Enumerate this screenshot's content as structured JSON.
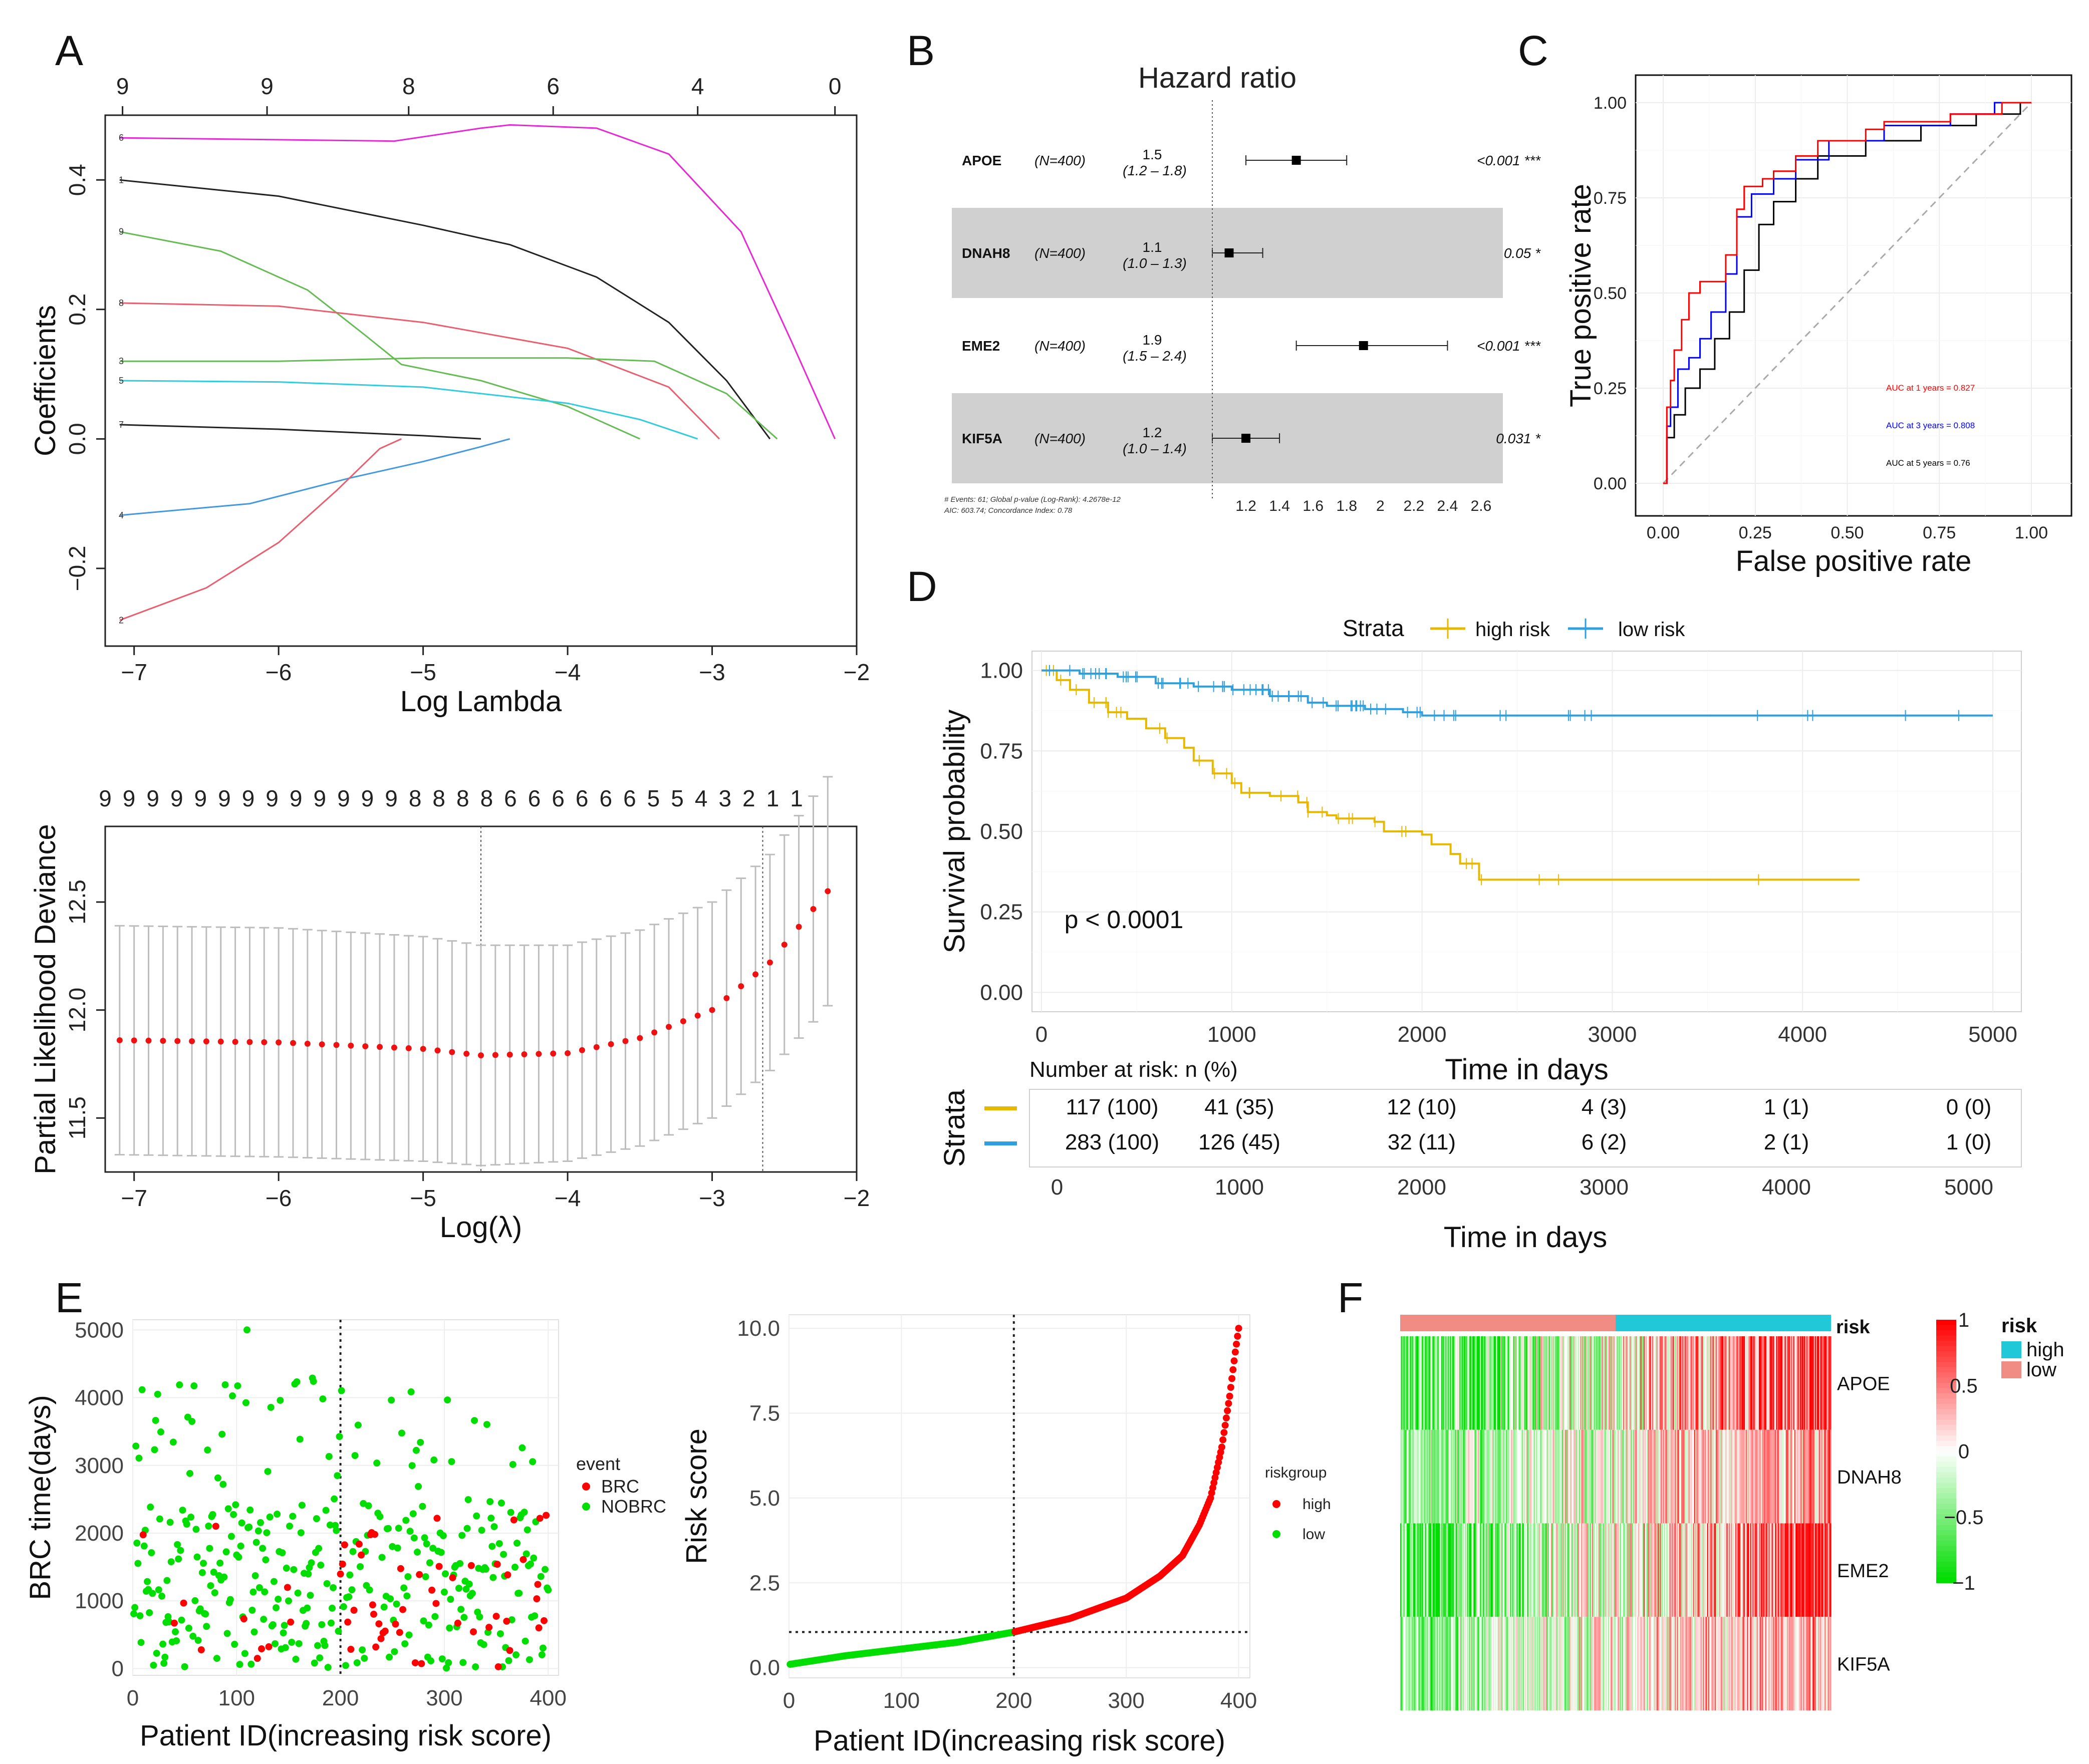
{
  "colors": {
    "high_risk": "#E7B800",
    "low_risk": "#2E9FDF",
    "roc1": "#FF0000",
    "roc3": "#0000FF",
    "roc5": "#000000",
    "brc": "#FF0000",
    "nobrc": "#00DD00",
    "heat_high": "#FF0000",
    "heat_low": "#00DD00",
    "risk_high_bar": "#20C8D8",
    "risk_low_bar": "#F08C84"
  },
  "panels": {
    "A": "A",
    "B": "B",
    "C": "C",
    "D": "D",
    "E": "E",
    "F": "F"
  },
  "chart_data": [
    {
      "id": "A_top",
      "type": "line",
      "title": "",
      "xlabel": "Log Lambda",
      "ylabel": "Coefficients",
      "xlim": [
        -7.2,
        -2.0
      ],
      "ylim": [
        -0.32,
        0.5
      ],
      "xticks": [
        -7,
        -6,
        -5,
        -4,
        -3,
        -2
      ],
      "yticks": [
        -0.2,
        0.0,
        0.2,
        0.4
      ],
      "top_ticks": {
        "positions": [
          -7.08,
          -6.08,
          -5.1,
          -4.1,
          -3.1,
          -2.15
        ],
        "labels": [
          "9",
          "9",
          "8",
          "6",
          "4",
          "0"
        ]
      },
      "series": [
        {
          "name": "6",
          "color": "#E52BD4",
          "x": [
            -7.1,
            -5.2,
            -4.6,
            -4.4,
            -3.8,
            -3.3,
            -2.8,
            -2.45,
            -2.15
          ],
          "y": [
            0.465,
            0.46,
            0.48,
            0.485,
            0.48,
            0.44,
            0.32,
            0.15,
            0.0
          ]
        },
        {
          "name": "1",
          "color": "#222222",
          "x": [
            -7.1,
            -6.0,
            -5.0,
            -4.4,
            -3.8,
            -3.3,
            -2.9,
            -2.6
          ],
          "y": [
            0.4,
            0.375,
            0.33,
            0.3,
            0.25,
            0.18,
            0.09,
            0.0
          ]
        },
        {
          "name": "9",
          "color": "#66BB55",
          "x": [
            -7.1,
            -6.4,
            -5.8,
            -5.4,
            -5.15,
            -4.6,
            -4.0,
            -3.5
          ],
          "y": [
            0.32,
            0.29,
            0.23,
            0.16,
            0.115,
            0.09,
            0.05,
            0.0
          ]
        },
        {
          "name": "8",
          "color": "#E86070",
          "x": [
            -7.1,
            -6.0,
            -5.0,
            -4.0,
            -3.3,
            -2.95
          ],
          "y": [
            0.21,
            0.205,
            0.18,
            0.14,
            0.08,
            0.0
          ]
        },
        {
          "name": "3",
          "color": "#66BB55",
          "x": [
            -7.1,
            -6.0,
            -5.0,
            -4.0,
            -3.4,
            -2.9,
            -2.55
          ],
          "y": [
            0.12,
            0.12,
            0.125,
            0.125,
            0.12,
            0.07,
            0.0
          ]
        },
        {
          "name": "5",
          "color": "#33CCDD",
          "x": [
            -7.1,
            -6.0,
            -5.0,
            -4.0,
            -3.5,
            -3.1
          ],
          "y": [
            0.09,
            0.088,
            0.08,
            0.055,
            0.03,
            0.0
          ]
        },
        {
          "name": "7",
          "color": "#222222",
          "x": [
            -7.1,
            -6.0,
            -5.0,
            -4.6
          ],
          "y": [
            0.022,
            0.015,
            0.005,
            0.0
          ]
        },
        {
          "name": "4",
          "color": "#4499DD",
          "x": [
            -7.1,
            -6.2,
            -5.5,
            -5.0,
            -4.6,
            -4.4
          ],
          "y": [
            -0.118,
            -0.1,
            -0.06,
            -0.035,
            -0.012,
            0.0
          ]
        },
        {
          "name": "2",
          "color": "#E86070",
          "x": [
            -7.1,
            -6.5,
            -6.0,
            -5.6,
            -5.3,
            -5.15
          ],
          "y": [
            -0.28,
            -0.23,
            -0.16,
            -0.08,
            -0.015,
            0.0
          ]
        }
      ]
    },
    {
      "id": "A_bottom",
      "type": "scatter",
      "xlabel": "Log(λ)",
      "ylabel": "Partial Likelihood Deviance",
      "xlim": [
        -7.2,
        -2.0
      ],
      "ylim": [
        11.25,
        12.85
      ],
      "xticks": [
        -7,
        -6,
        -5,
        -4,
        -3,
        -2
      ],
      "yticks": [
        11.5,
        12.0,
        12.5
      ],
      "top_labels": [
        "9",
        "9",
        "9",
        "9",
        "9",
        "9",
        "9",
        "9",
        "9",
        "9",
        "9",
        "9",
        "9",
        "8",
        "8",
        "8",
        "8",
        "6",
        "6",
        "6",
        "6",
        "6",
        "6",
        "5",
        "5",
        "4",
        "3",
        "2",
        "1",
        "1"
      ],
      "vlines": [
        -4.6,
        -2.65
      ],
      "lambda_start": -7.1,
      "lambda_end": -2.2,
      "n_points": 50,
      "curve": {
        "x": [
          -7.1,
          -6.0,
          -5.0,
          -4.6,
          -4.0,
          -3.5,
          -3.0,
          -2.6,
          -2.2
        ],
        "y": [
          11.86,
          11.85,
          11.82,
          11.79,
          11.8,
          11.87,
          12.0,
          12.22,
          12.55
        ]
      },
      "band": {
        "x": [
          -7.1,
          -6.0,
          -5.0,
          -4.6,
          -4.0,
          -3.5,
          -3.0,
          -2.6,
          -2.2
        ],
        "half": [
          0.53,
          0.53,
          0.52,
          0.51,
          0.5,
          0.5,
          0.5,
          0.5,
          0.53
        ]
      }
    },
    {
      "id": "B",
      "type": "forest",
      "title": "Hazard ratio",
      "rows": [
        {
          "gene": "APOE",
          "n": "(N=400)",
          "hr": "1.5",
          "ci": "(1.2 – 1.8)",
          "p": "<0.001 ***",
          "est": 1.5,
          "lo": 1.2,
          "hi": 1.8,
          "shade": false
        },
        {
          "gene": "DNAH8",
          "n": "(N=400)",
          "hr": "1.1",
          "ci": "(1.0 – 1.3)",
          "p": "0.05 *",
          "est": 1.1,
          "lo": 1.0,
          "hi": 1.3,
          "shade": true
        },
        {
          "gene": "EME2",
          "n": "(N=400)",
          "hr": "1.9",
          "ci": "(1.5 – 2.4)",
          "p": "<0.001 ***",
          "est": 1.9,
          "lo": 1.5,
          "hi": 2.4,
          "shade": false
        },
        {
          "gene": "KIF5A",
          "n": "(N=400)",
          "hr": "1.2",
          "ci": "(1.0 – 1.4)",
          "p": "0.031 *",
          "est": 1.2,
          "lo": 1.0,
          "hi": 1.4,
          "shade": true
        }
      ],
      "x_tick_labels": [
        "1.2",
        "1.4",
        "1.6",
        "1.8",
        "2",
        "2.2",
        "2.4",
        "2.6"
      ],
      "x_tick_values": [
        1.2,
        1.4,
        1.6,
        1.8,
        2.0,
        2.2,
        2.4,
        2.6
      ],
      "footnote_1": "# Events: 61; Global p-value (Log-Rank): 4.2678e-12",
      "footnote_2": "AIC: 603.74; Concordance Index: 0.78"
    },
    {
      "id": "C",
      "type": "line",
      "xlabel": "False positive rate",
      "ylabel": "True positive rate",
      "xlim": [
        0,
        1
      ],
      "ylim": [
        0,
        1
      ],
      "xticks": [
        "0.00",
        "0.25",
        "0.50",
        "0.75",
        "1.00"
      ],
      "yticks": [
        "0.00",
        "0.25",
        "0.50",
        "0.75",
        "1.00"
      ],
      "legend": [
        "AUC at 1 years = 0.827",
        "AUC at 3 years = 0.808",
        "AUC at 5 years = 0.76"
      ],
      "series": [
        {
          "name": "1 years",
          "color": "#FF0000",
          "x": [
            0,
            0.01,
            0.01,
            0.02,
            0.02,
            0.03,
            0.03,
            0.05,
            0.05,
            0.07,
            0.07,
            0.1,
            0.1,
            0.17,
            0.17,
            0.2,
            0.2,
            0.22,
            0.22,
            0.27,
            0.27,
            0.3,
            0.3,
            0.36,
            0.36,
            0.42,
            0.42,
            0.55,
            0.55,
            0.6,
            0.6,
            0.78,
            0.78,
            0.92,
            0.92,
            1.0
          ],
          "y": [
            0,
            0,
            0.2,
            0.2,
            0.27,
            0.27,
            0.35,
            0.35,
            0.43,
            0.43,
            0.5,
            0.5,
            0.53,
            0.53,
            0.6,
            0.6,
            0.72,
            0.72,
            0.78,
            0.78,
            0.8,
            0.8,
            0.82,
            0.82,
            0.86,
            0.86,
            0.9,
            0.9,
            0.93,
            0.93,
            0.95,
            0.95,
            0.97,
            0.97,
            1.0,
            1.0
          ]
        },
        {
          "name": "3 years",
          "color": "#0000FF",
          "x": [
            0,
            0.01,
            0.01,
            0.02,
            0.02,
            0.04,
            0.04,
            0.07,
            0.07,
            0.1,
            0.1,
            0.13,
            0.13,
            0.17,
            0.17,
            0.2,
            0.2,
            0.24,
            0.24,
            0.3,
            0.3,
            0.36,
            0.36,
            0.45,
            0.45,
            0.6,
            0.6,
            0.78,
            0.78,
            0.9,
            0.9,
            1.0
          ],
          "y": [
            0,
            0,
            0.15,
            0.15,
            0.2,
            0.2,
            0.3,
            0.3,
            0.33,
            0.33,
            0.38,
            0.38,
            0.45,
            0.45,
            0.55,
            0.55,
            0.7,
            0.7,
            0.76,
            0.76,
            0.8,
            0.8,
            0.85,
            0.85,
            0.9,
            0.9,
            0.94,
            0.94,
            0.97,
            0.97,
            1.0,
            1.0
          ]
        },
        {
          "name": "5 years",
          "color": "#000000",
          "x": [
            0,
            0.01,
            0.01,
            0.03,
            0.03,
            0.06,
            0.06,
            0.1,
            0.1,
            0.14,
            0.14,
            0.18,
            0.18,
            0.22,
            0.22,
            0.26,
            0.26,
            0.3,
            0.3,
            0.36,
            0.36,
            0.42,
            0.42,
            0.55,
            0.55,
            0.7,
            0.7,
            0.85,
            0.85,
            0.97,
            0.97,
            1.0
          ],
          "y": [
            0,
            0,
            0.12,
            0.12,
            0.18,
            0.18,
            0.25,
            0.25,
            0.3,
            0.3,
            0.38,
            0.38,
            0.45,
            0.45,
            0.56,
            0.56,
            0.68,
            0.68,
            0.74,
            0.74,
            0.8,
            0.8,
            0.86,
            0.86,
            0.9,
            0.9,
            0.94,
            0.94,
            0.97,
            0.97,
            1.0,
            1.0
          ]
        }
      ]
    },
    {
      "id": "D",
      "type": "line",
      "legend_title": "Strata",
      "legend": [
        "high risk",
        "low risk"
      ],
      "xlabel": "Time in days",
      "ylabel": "Survival probability",
      "xlim": [
        0,
        5000
      ],
      "ylim": [
        0,
        1
      ],
      "xticks": [
        "0",
        "1000",
        "2000",
        "3000",
        "4000",
        "5000"
      ],
      "yticks": [
        "0.00",
        "0.25",
        "0.50",
        "0.75",
        "1.00"
      ],
      "annotation": "p < 0.0001",
      "series": [
        {
          "name": "high risk",
          "x": [
            0,
            80,
            150,
            250,
            350,
            450,
            550,
            650,
            750,
            800,
            900,
            1000,
            1050,
            1200,
            1350,
            1400,
            1500,
            1550,
            1750,
            1800,
            2000,
            2050,
            2150,
            2200,
            2300,
            4300
          ],
          "y": [
            1.0,
            0.97,
            0.94,
            0.9,
            0.87,
            0.85,
            0.82,
            0.79,
            0.76,
            0.72,
            0.68,
            0.65,
            0.62,
            0.61,
            0.59,
            0.56,
            0.55,
            0.54,
            0.53,
            0.5,
            0.49,
            0.46,
            0.43,
            0.4,
            0.35,
            0.35
          ]
        },
        {
          "name": "low risk",
          "x": [
            0,
            200,
            400,
            600,
            800,
            1000,
            1200,
            1400,
            1500,
            1700,
            1900,
            2000,
            5000
          ],
          "y": [
            1.0,
            0.99,
            0.98,
            0.96,
            0.95,
            0.94,
            0.92,
            0.9,
            0.89,
            0.88,
            0.87,
            0.86,
            0.86
          ]
        }
      ],
      "risk_table": {
        "title": "Number at risk: n (%)",
        "ylabel": "Strata",
        "xlabel": "Time in days",
        "xticks": [
          "0",
          "1000",
          "2000",
          "3000",
          "4000",
          "5000"
        ],
        "rows": [
          {
            "name": "high risk",
            "values": [
              "117 (100)",
              "41 (35)",
              "12 (10)",
              "4 (3)",
              "1 (1)",
              "0 (0)"
            ]
          },
          {
            "name": "low risk",
            "values": [
              "283 (100)",
              "126 (45)",
              "32 (11)",
              "6 (2)",
              "2 (1)",
              "1 (0)"
            ]
          }
        ]
      }
    },
    {
      "id": "E_left",
      "type": "scatter",
      "xlabel": "Patient ID(increasing risk score)",
      "ylabel": "BRC time(days)",
      "xlim": [
        0,
        410
      ],
      "ylim": [
        -100,
        5150
      ],
      "xticks": [
        "0",
        "100",
        "200",
        "300",
        "400"
      ],
      "yticks": [
        "0",
        "1000",
        "2000",
        "3000",
        "4000",
        "5000"
      ],
      "vline": 200,
      "legend_title": "event",
      "legend": [
        "BRC",
        "NOBRC"
      ],
      "n_points": 400,
      "events_low": 10,
      "events_high": 51
    },
    {
      "id": "E_right",
      "type": "scatter",
      "xlabel": "Patient ID(increasing risk score)",
      "ylabel": "Risk score",
      "xlim": [
        0,
        410
      ],
      "ylim": [
        -0.3,
        10.4
      ],
      "xticks": [
        "0",
        "100",
        "200",
        "300",
        "400"
      ],
      "yticks": [
        "0.0",
        "2.5",
        "5.0",
        "7.5",
        "10.0"
      ],
      "vline": 200,
      "hline": 1.05,
      "legend_title": "riskgroup",
      "legend": [
        "high",
        "low"
      ],
      "curve": {
        "x": [
          1,
          50,
          100,
          150,
          200,
          250,
          300,
          330,
          350,
          365,
          375,
          385,
          392,
          397,
          400
        ],
        "y": [
          0.1,
          0.35,
          0.55,
          0.75,
          1.05,
          1.45,
          2.05,
          2.7,
          3.3,
          4.2,
          5.0,
          6.5,
          8.0,
          9.3,
          10.0
        ]
      }
    },
    {
      "id": "F",
      "type": "heatmap",
      "rows": [
        "APOE",
        "DNAH8",
        "EME2",
        "KIF5A"
      ],
      "annotation_label": "risk",
      "legend_title": "risk",
      "legend": [
        "high",
        "low"
      ],
      "scale_ticks": [
        "1",
        "0.5",
        "0",
        "−0.5",
        "−1"
      ],
      "n_columns": 400,
      "n_low": 200
    }
  ]
}
